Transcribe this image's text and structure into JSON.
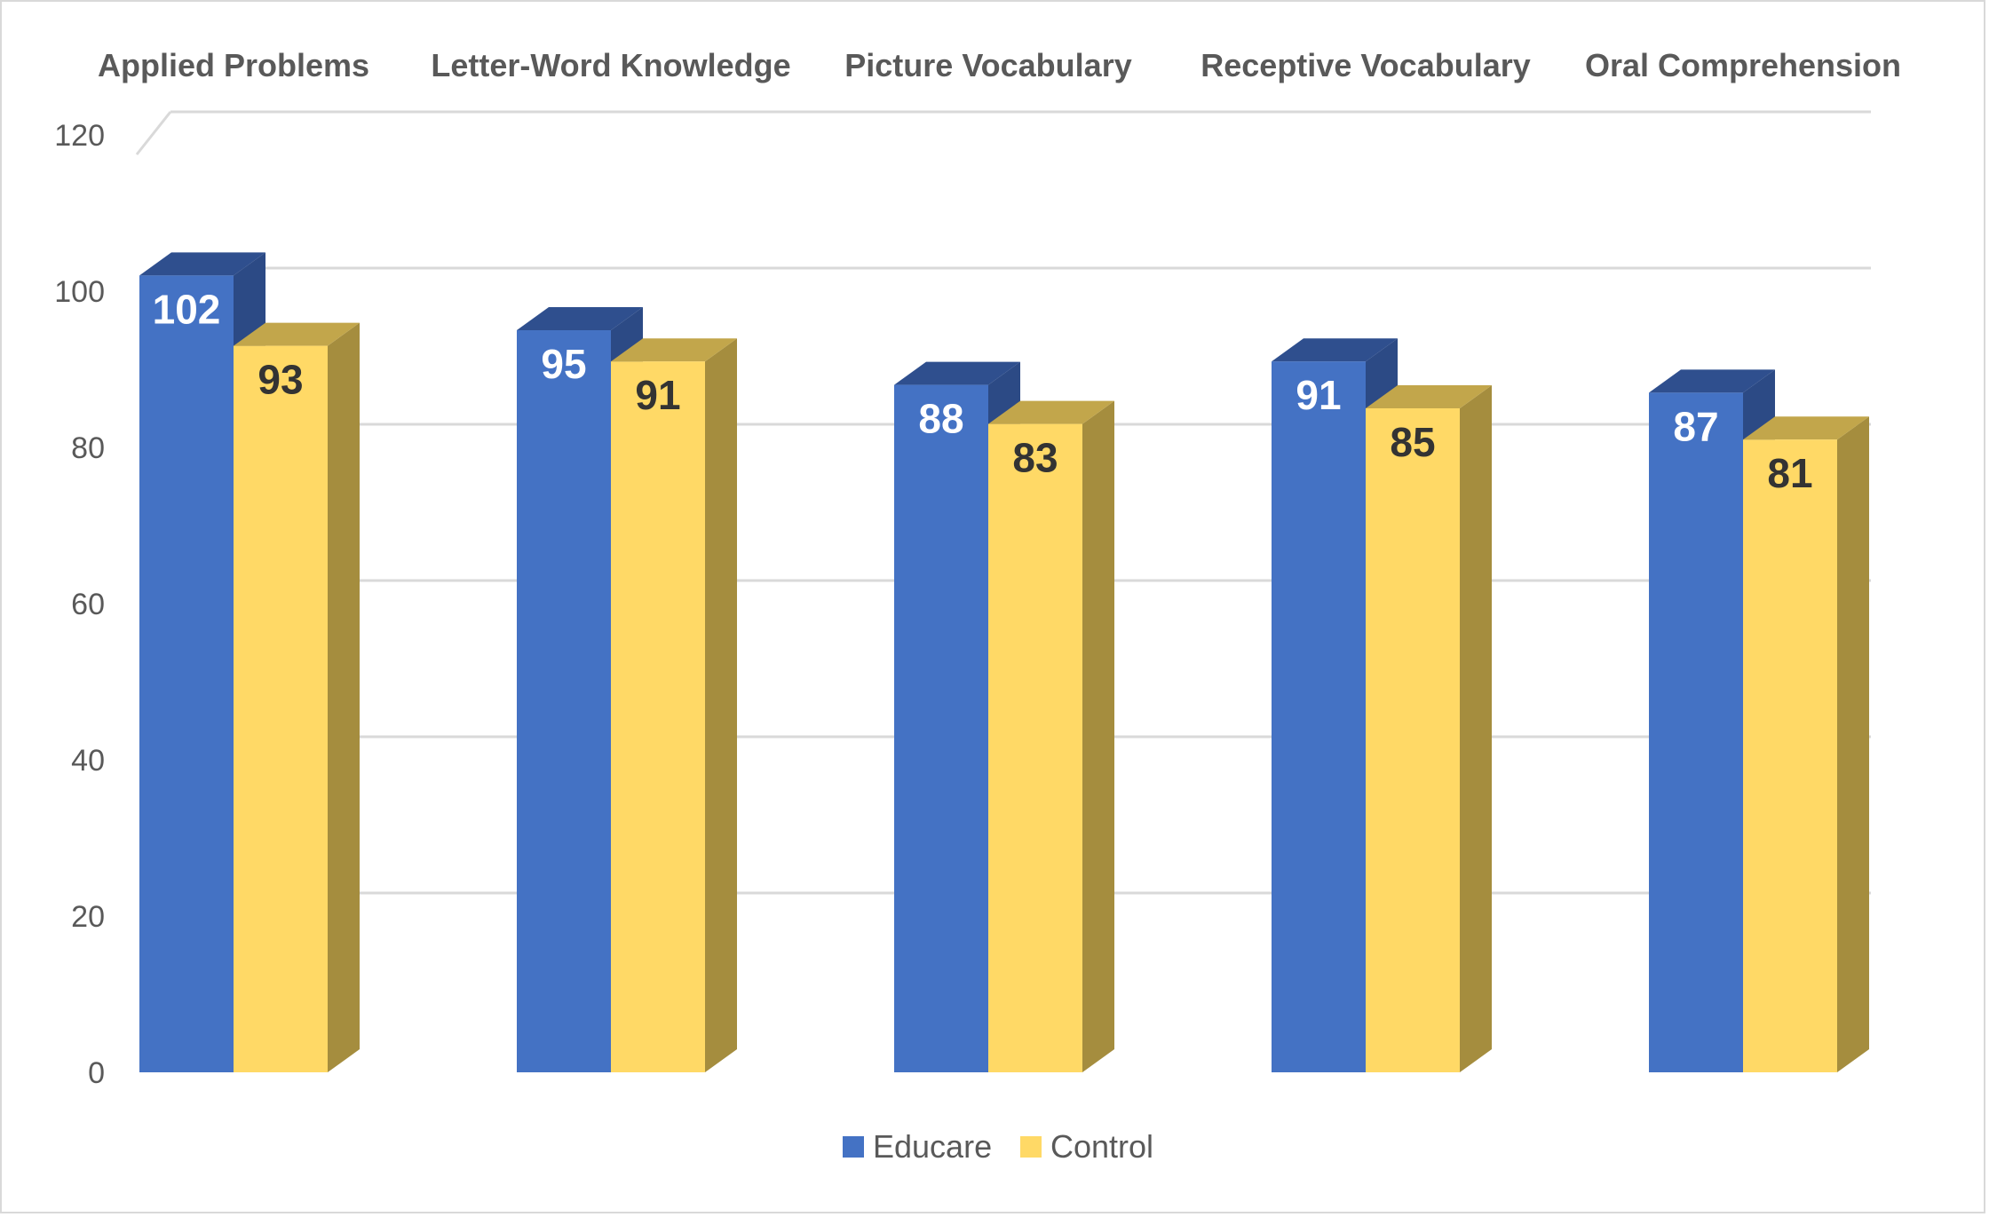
{
  "chart_data": {
    "type": "bar",
    "style": "3d-clustered-column",
    "categories": [
      "Applied Problems",
      "Letter-Word Knowledge",
      "Picture Vocabulary",
      "Receptive Vocabulary",
      "Oral Comprehension"
    ],
    "series": [
      {
        "name": "Educare",
        "values": [
          102,
          95,
          88,
          91,
          87
        ],
        "color": "#4472c4",
        "top_color": "#2f4f8e",
        "side_color": "#2c4a85",
        "label_color": "#ffffff"
      },
      {
        "name": "Control",
        "values": [
          93,
          91,
          83,
          85,
          81
        ],
        "color": "#ffd966",
        "top_color": "#c2a64b",
        "side_color": "#a58d3e",
        "label_color": "#333333"
      }
    ],
    "ylim": [
      0,
      120
    ],
    "yticks": [
      0,
      20,
      40,
      60,
      80,
      100,
      120
    ],
    "grid": true,
    "category_labels_position": "top",
    "legend_position": "bottom"
  }
}
